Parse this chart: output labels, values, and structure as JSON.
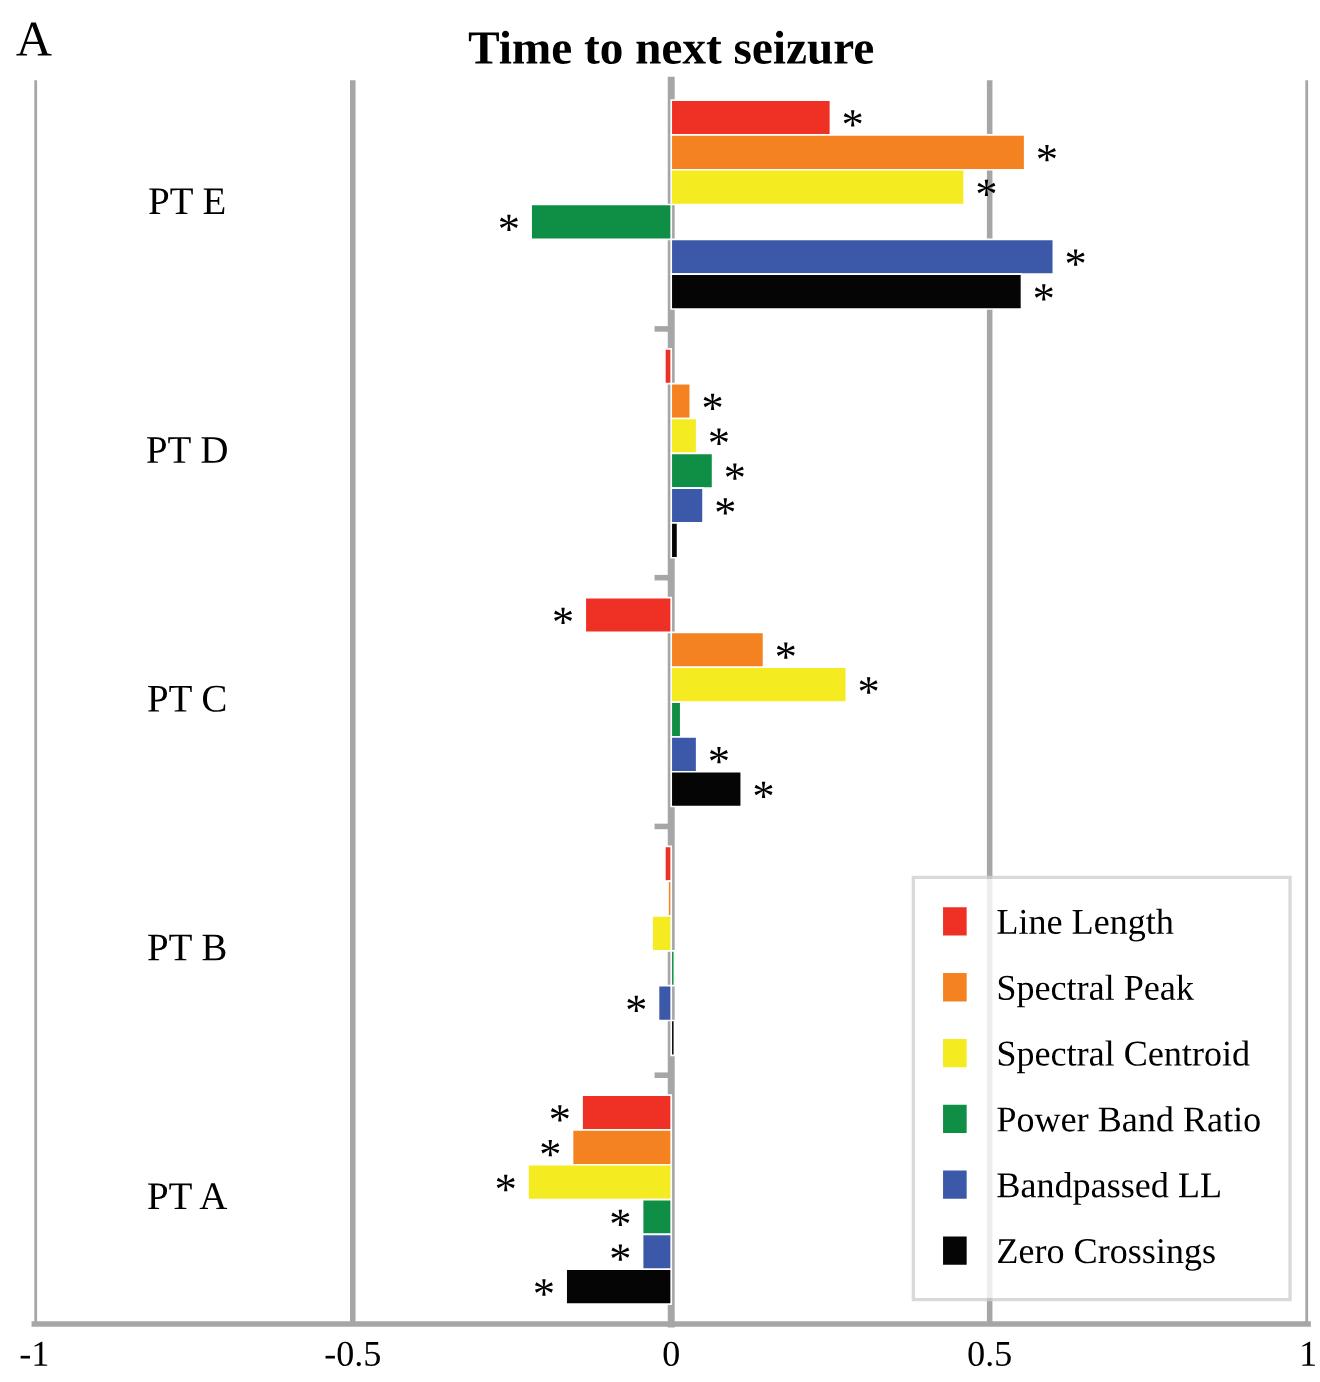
{
  "chart_data": {
    "type": "bar",
    "orientation": "horizontal",
    "title": "Time to next seizure",
    "annotations": [
      "A"
    ],
    "categories": [
      "PT E",
      "PT D",
      "PT C",
      "PT B",
      "PT A"
    ],
    "series": [
      {
        "name": "Line Length",
        "color": "#ee3124",
        "values": [
          0.25,
          -0.01,
          -0.135,
          -0.01,
          -0.14
        ],
        "value_labels": [
          "*",
          null,
          "*",
          null,
          "*"
        ]
      },
      {
        "name": "Spectral Peak",
        "color": "#f58220",
        "values": [
          0.555,
          0.03,
          0.145,
          -0.005,
          -0.155
        ],
        "value_labels": [
          "*",
          "*",
          "*",
          null,
          "*"
        ]
      },
      {
        "name": "Spectral Centroid",
        "color": "#f4eb20",
        "values": [
          0.46,
          0.04,
          0.275,
          -0.03,
          -0.225
        ],
        "value_labels": [
          "*",
          "*",
          "*",
          null,
          "*"
        ]
      },
      {
        "name": "Power Band Ratio",
        "color": "#0e8f45",
        "values": [
          -0.22,
          0.065,
          0.015,
          0.005,
          -0.045
        ],
        "value_labels": [
          "*",
          "*",
          null,
          null,
          "*"
        ]
      },
      {
        "name": "Bandpassed LL",
        "color": "#3c58a8",
        "values": [
          0.6,
          0.05,
          0.04,
          -0.02,
          -0.045
        ],
        "value_labels": [
          "*",
          "*",
          "*",
          "*",
          "*"
        ]
      },
      {
        "name": "Zero Crossings",
        "color": "#050505",
        "values": [
          0.55,
          0.01,
          0.11,
          0.005,
          -0.165
        ],
        "value_labels": [
          "*",
          null,
          "*",
          null,
          "*"
        ]
      }
    ],
    "xlim": [
      -1,
      1
    ],
    "xticks": [
      -1,
      -0.5,
      0,
      0.5,
      1
    ],
    "grid": "x",
    "legend": "bottom right"
  }
}
